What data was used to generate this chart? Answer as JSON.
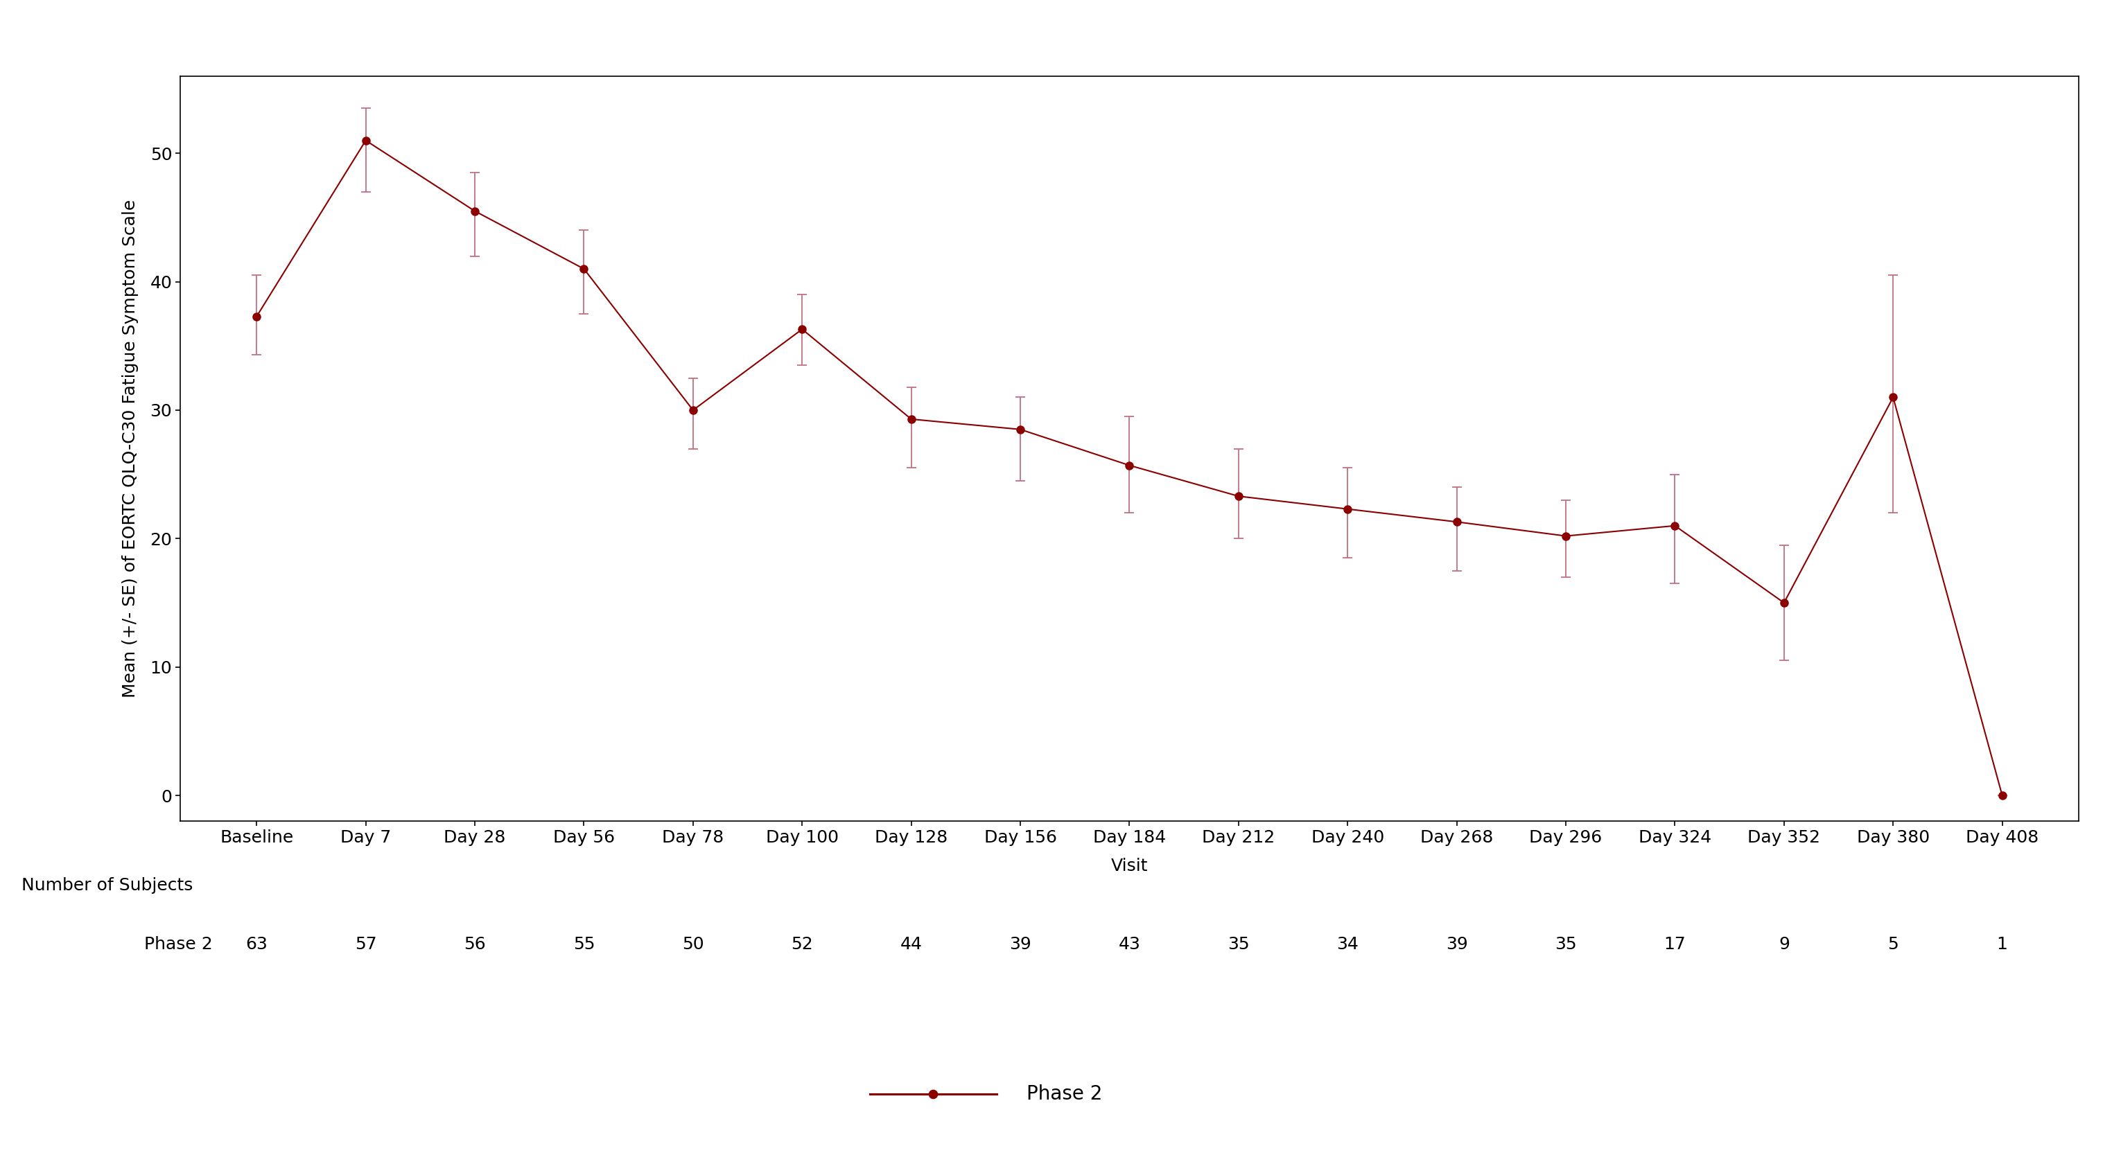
{
  "x_labels": [
    "Baseline",
    "Day 7",
    "Day 28",
    "Day 56",
    "Day 78",
    "Day 100",
    "Day 128",
    "Day 156",
    "Day 184",
    "Day 212",
    "Day 240",
    "Day 268",
    "Day 296",
    "Day 324",
    "Day 352",
    "Day 380",
    "Day 408"
  ],
  "means": [
    37.3,
    51.0,
    45.5,
    41.0,
    30.0,
    36.3,
    29.3,
    28.5,
    25.7,
    23.3,
    22.3,
    21.3,
    20.2,
    21.0,
    15.0,
    31.0,
    0.0
  ],
  "se_upper": [
    40.5,
    53.5,
    48.5,
    44.0,
    32.5,
    39.0,
    31.8,
    31.0,
    29.5,
    27.0,
    25.5,
    24.0,
    23.0,
    25.0,
    19.5,
    40.5,
    0.0
  ],
  "se_lower": [
    34.3,
    47.0,
    42.0,
    37.5,
    27.0,
    33.5,
    25.5,
    24.5,
    22.0,
    20.0,
    18.5,
    17.5,
    17.0,
    16.5,
    10.5,
    22.0,
    0.0
  ],
  "n_subjects": [
    63,
    57,
    56,
    55,
    50,
    52,
    44,
    39,
    43,
    35,
    34,
    39,
    35,
    17,
    9,
    5,
    1
  ],
  "line_color": "#8B0000",
  "marker_color": "#8B0000",
  "errorbar_color": "#C07080",
  "ylabel": "Mean (+/- SE) of EORTC QLQ-C30 Fatigue Symptom Scale",
  "xlabel": "Visit",
  "ylim": [
    -2,
    56
  ],
  "yticks": [
    0,
    10,
    20,
    30,
    40,
    50
  ],
  "legend_label": "Phase 2",
  "n_label": "Phase 2",
  "n_header": "Number of Subjects",
  "bg_color": "#ffffff",
  "plot_bg_color": "#ffffff",
  "marker_size": 8,
  "line_width": 1.5,
  "capsize": 5,
  "errorbar_linewidth": 1.3,
  "tick_fontsize": 18,
  "label_fontsize": 18,
  "table_fontsize": 18,
  "legend_fontsize": 20
}
